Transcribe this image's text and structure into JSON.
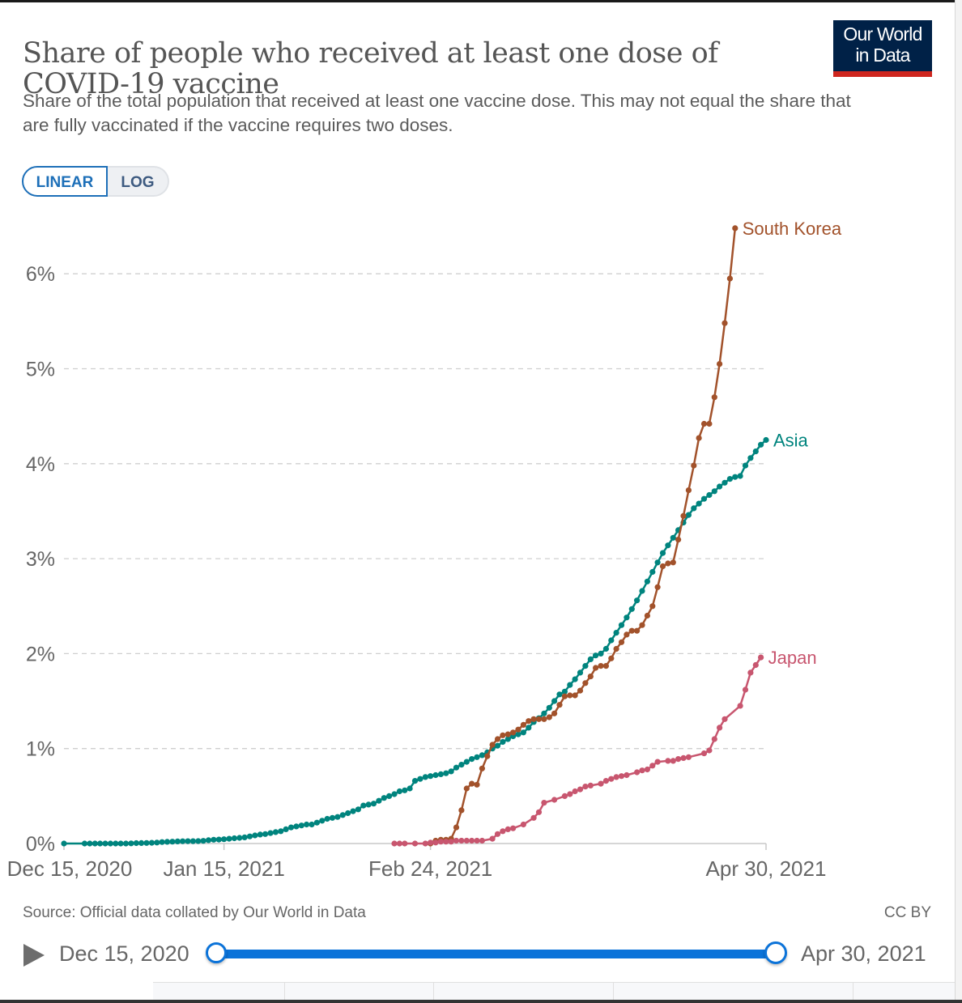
{
  "header": {
    "title": "Share of people who received at least one dose of COVID-19 vaccine",
    "subtitle": "Share of the total population that received at least one vaccine dose. This may not equal the share that are fully vaccinated if the vaccine requires two doses.",
    "logo_line1": "Our World",
    "logo_line2": "in Data"
  },
  "controls": {
    "linear_label": "LINEAR",
    "log_label": "LOG",
    "selected": "LINEAR"
  },
  "footer": {
    "source": "Source: Official data collated by Our World in Data",
    "license": "CC BY"
  },
  "timeline": {
    "start_label": "Dec 15, 2020",
    "end_label": "Apr 30, 2021",
    "play_icon": "play-icon"
  },
  "colors": {
    "asia": "#00847e",
    "south_korea": "#a2522b",
    "japan": "#c8566f",
    "logo_bg": "#002147",
    "logo_accent": "#ce261e",
    "timeline_accent": "#0b73d9"
  },
  "chart_data": {
    "type": "line",
    "title": "Share of people who received at least one dose of COVID-19 vaccine",
    "xlabel": "",
    "ylabel": "",
    "x_unit": "days since Dec 15, 2020",
    "xlim": [
      0,
      136
    ],
    "ylim": [
      0,
      6.5
    ],
    "grid": true,
    "legend": "inline-right",
    "yticks": [
      {
        "value": 0,
        "label": "0%"
      },
      {
        "value": 1,
        "label": "1%"
      },
      {
        "value": 2,
        "label": "2%"
      },
      {
        "value": 3,
        "label": "3%"
      },
      {
        "value": 4,
        "label": "4%"
      },
      {
        "value": 5,
        "label": "5%"
      },
      {
        "value": 6,
        "label": "6%"
      }
    ],
    "xticks": [
      {
        "value": 0,
        "label": "Dec 15, 2020"
      },
      {
        "value": 31,
        "label": "Jan 15, 2021"
      },
      {
        "value": 71,
        "label": "Feb 24, 2021"
      },
      {
        "value": 136,
        "label": "Apr 30, 2021"
      }
    ],
    "series": [
      {
        "name": "Asia",
        "color": "#00847e",
        "points": [
          [
            0,
            0
          ],
          [
            4,
            0
          ],
          [
            5,
            0
          ],
          [
            6,
            0
          ],
          [
            7,
            0
          ],
          [
            8,
            0
          ],
          [
            9,
            0
          ],
          [
            10,
            0
          ],
          [
            11,
            0
          ],
          [
            12,
            0
          ],
          [
            13,
            0.002
          ],
          [
            14,
            0.004
          ],
          [
            15,
            0.005
          ],
          [
            16,
            0.006
          ],
          [
            17,
            0.008
          ],
          [
            18,
            0.01
          ],
          [
            19,
            0.015
          ],
          [
            20,
            0.018
          ],
          [
            21,
            0.02
          ],
          [
            22,
            0.022
          ],
          [
            23,
            0.024
          ],
          [
            24,
            0.025
          ],
          [
            25,
            0.025
          ],
          [
            26,
            0.026
          ],
          [
            27,
            0.028
          ],
          [
            28,
            0.035
          ],
          [
            29,
            0.04
          ],
          [
            30,
            0.042
          ],
          [
            31,
            0.045
          ],
          [
            32,
            0.05
          ],
          [
            33,
            0.055
          ],
          [
            34,
            0.06
          ],
          [
            35,
            0.065
          ],
          [
            36,
            0.075
          ],
          [
            37,
            0.085
          ],
          [
            38,
            0.095
          ],
          [
            39,
            0.1
          ],
          [
            40,
            0.11
          ],
          [
            41,
            0.12
          ],
          [
            42,
            0.13
          ],
          [
            43,
            0.15
          ],
          [
            44,
            0.17
          ],
          [
            45,
            0.18
          ],
          [
            46,
            0.19
          ],
          [
            47,
            0.2
          ],
          [
            48,
            0.2
          ],
          [
            49,
            0.22
          ],
          [
            50,
            0.24
          ],
          [
            51,
            0.26
          ],
          [
            52,
            0.27
          ],
          [
            53,
            0.28
          ],
          [
            54,
            0.3
          ],
          [
            55,
            0.32
          ],
          [
            56,
            0.34
          ],
          [
            57,
            0.36
          ],
          [
            58,
            0.4
          ],
          [
            59,
            0.41
          ],
          [
            60,
            0.42
          ],
          [
            61,
            0.45
          ],
          [
            62,
            0.48
          ],
          [
            63,
            0.5
          ],
          [
            64,
            0.52
          ],
          [
            65,
            0.55
          ],
          [
            66,
            0.56
          ],
          [
            67,
            0.58
          ],
          [
            68,
            0.66
          ],
          [
            69,
            0.68
          ],
          [
            70,
            0.7
          ],
          [
            71,
            0.71
          ],
          [
            72,
            0.72
          ],
          [
            73,
            0.73
          ],
          [
            74,
            0.74
          ],
          [
            75,
            0.76
          ],
          [
            76,
            0.8
          ],
          [
            77,
            0.83
          ],
          [
            78,
            0.86
          ],
          [
            79,
            0.89
          ],
          [
            80,
            0.91
          ],
          [
            81,
            0.93
          ],
          [
            82,
            0.96
          ],
          [
            83,
            1.0
          ],
          [
            84,
            1.03
          ],
          [
            85,
            1.07
          ],
          [
            86,
            1.1
          ],
          [
            87,
            1.13
          ],
          [
            88,
            1.15
          ],
          [
            89,
            1.17
          ],
          [
            90,
            1.22
          ],
          [
            91,
            1.28
          ],
          [
            92,
            1.32
          ],
          [
            93,
            1.37
          ],
          [
            94,
            1.43
          ],
          [
            95,
            1.5
          ],
          [
            96,
            1.57
          ],
          [
            97,
            1.6
          ],
          [
            98,
            1.67
          ],
          [
            99,
            1.73
          ],
          [
            100,
            1.8
          ],
          [
            101,
            1.87
          ],
          [
            102,
            1.94
          ],
          [
            103,
            1.98
          ],
          [
            104,
            2.0
          ],
          [
            105,
            2.05
          ],
          [
            106,
            2.14
          ],
          [
            107,
            2.22
          ],
          [
            108,
            2.3
          ],
          [
            109,
            2.38
          ],
          [
            110,
            2.47
          ],
          [
            111,
            2.56
          ],
          [
            112,
            2.66
          ],
          [
            113,
            2.76
          ],
          [
            114,
            2.86
          ],
          [
            115,
            2.96
          ],
          [
            116,
            3.06
          ],
          [
            117,
            3.14
          ],
          [
            118,
            3.22
          ],
          [
            119,
            3.3
          ],
          [
            120,
            3.38
          ],
          [
            121,
            3.46
          ],
          [
            122,
            3.53
          ],
          [
            123,
            3.58
          ],
          [
            124,
            3.63
          ],
          [
            125,
            3.67
          ],
          [
            126,
            3.71
          ],
          [
            127,
            3.76
          ],
          [
            128,
            3.8
          ],
          [
            129,
            3.84
          ],
          [
            130,
            3.86
          ],
          [
            131,
            3.87
          ],
          [
            132,
            3.98
          ],
          [
            133,
            4.06
          ],
          [
            134,
            4.13
          ],
          [
            135,
            4.2
          ],
          [
            136,
            4.25
          ]
        ]
      },
      {
        "name": "South Korea",
        "color": "#a2522b",
        "points": [
          [
            71,
            0
          ],
          [
            72,
            0.03
          ],
          [
            73,
            0.04
          ],
          [
            74,
            0.04
          ],
          [
            75,
            0.05
          ],
          [
            76,
            0.17
          ],
          [
            77,
            0.35
          ],
          [
            78,
            0.58
          ],
          [
            79,
            0.63
          ],
          [
            80,
            0.62
          ],
          [
            81,
            0.79
          ],
          [
            82,
            0.92
          ],
          [
            83,
            1.04
          ],
          [
            84,
            1.1
          ],
          [
            85,
            1.14
          ],
          [
            86,
            1.15
          ],
          [
            87,
            1.17
          ],
          [
            88,
            1.2
          ],
          [
            89,
            1.25
          ],
          [
            90,
            1.29
          ],
          [
            91,
            1.31
          ],
          [
            92,
            1.31
          ],
          [
            93,
            1.31
          ],
          [
            94,
            1.33
          ],
          [
            95,
            1.37
          ],
          [
            96,
            1.46
          ],
          [
            97,
            1.55
          ],
          [
            98,
            1.56
          ],
          [
            99,
            1.56
          ],
          [
            100,
            1.61
          ],
          [
            101,
            1.69
          ],
          [
            102,
            1.76
          ],
          [
            103,
            1.85
          ],
          [
            104,
            1.87
          ],
          [
            105,
            1.87
          ],
          [
            106,
            1.95
          ],
          [
            107,
            2.05
          ],
          [
            108,
            2.12
          ],
          [
            109,
            2.2
          ],
          [
            110,
            2.24
          ],
          [
            111,
            2.24
          ],
          [
            112,
            2.3
          ],
          [
            113,
            2.4
          ],
          [
            114,
            2.5
          ],
          [
            115,
            2.7
          ],
          [
            116,
            2.92
          ],
          [
            117,
            2.95
          ],
          [
            118,
            2.96
          ],
          [
            119,
            3.2
          ],
          [
            120,
            3.45
          ],
          [
            121,
            3.72
          ],
          [
            122,
            3.98
          ],
          [
            123,
            4.27
          ],
          [
            124,
            4.42
          ],
          [
            125,
            4.42
          ],
          [
            126,
            4.7
          ],
          [
            127,
            5.05
          ],
          [
            128,
            5.48
          ],
          [
            129,
            5.95
          ],
          [
            130,
            6.48
          ]
        ]
      },
      {
        "name": "Japan",
        "color": "#c8566f",
        "points": [
          [
            64,
            0
          ],
          [
            65,
            0
          ],
          [
            66,
            0
          ],
          [
            68,
            0
          ],
          [
            70,
            0
          ],
          [
            71,
            0.01
          ],
          [
            72,
            0.01
          ],
          [
            73,
            0.02
          ],
          [
            74,
            0.02
          ],
          [
            75,
            0.02
          ],
          [
            76,
            0.03
          ],
          [
            77,
            0.03
          ],
          [
            78,
            0.03
          ],
          [
            79,
            0.03
          ],
          [
            80,
            0.03
          ],
          [
            81,
            0.03
          ],
          [
            83,
            0.05
          ],
          [
            84,
            0.1
          ],
          [
            85,
            0.13
          ],
          [
            86,
            0.15
          ],
          [
            87,
            0.16
          ],
          [
            89,
            0.2
          ],
          [
            91,
            0.27
          ],
          [
            92,
            0.33
          ],
          [
            93,
            0.43
          ],
          [
            95,
            0.46
          ],
          [
            97,
            0.5
          ],
          [
            98,
            0.52
          ],
          [
            99,
            0.55
          ],
          [
            100,
            0.57
          ],
          [
            101,
            0.6
          ],
          [
            102,
            0.61
          ],
          [
            104,
            0.63
          ],
          [
            105,
            0.66
          ],
          [
            106,
            0.68
          ],
          [
            107,
            0.7
          ],
          [
            108,
            0.71
          ],
          [
            109,
            0.72
          ],
          [
            111,
            0.75
          ],
          [
            112,
            0.77
          ],
          [
            113,
            0.78
          ],
          [
            114,
            0.82
          ],
          [
            115,
            0.86
          ],
          [
            117,
            0.87
          ],
          [
            118,
            0.87
          ],
          [
            119,
            0.89
          ],
          [
            120,
            0.9
          ],
          [
            121,
            0.91
          ],
          [
            124,
            0.95
          ],
          [
            125,
            0.98
          ],
          [
            126,
            1.1
          ],
          [
            127,
            1.22
          ],
          [
            128,
            1.31
          ],
          [
            131,
            1.45
          ],
          [
            132,
            1.62
          ],
          [
            133,
            1.8
          ],
          [
            134,
            1.88
          ],
          [
            135,
            1.96
          ]
        ]
      }
    ]
  }
}
